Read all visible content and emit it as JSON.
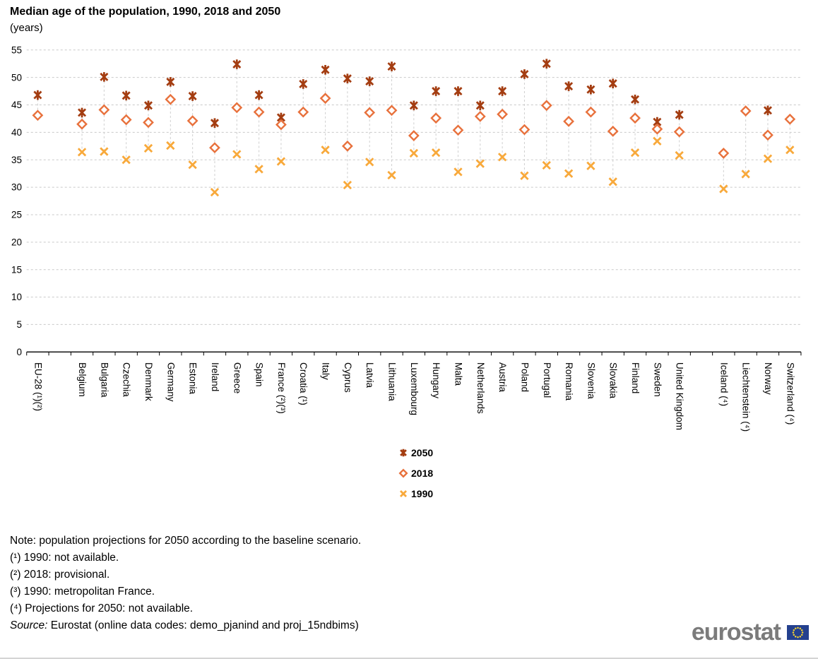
{
  "title": "Median age of the population, 1990, 2018 and 2050",
  "subtitle": "(years)",
  "chart_data": {
    "type": "scatter",
    "title": "Median age of the population, 1990, 2018 and 2050",
    "ylabel": "(years)",
    "ylim": [
      0,
      55
    ],
    "ytick_step": 5,
    "grid": "horizontal-dashed",
    "legend_position": "bottom-center",
    "category_groups": [
      [
        "EU-28 (¹)(²)"
      ],
      [
        "Belgium",
        "Bulgaria",
        "Czechia",
        "Denmark",
        "Germany",
        "Estonia",
        "Ireland",
        "Greece",
        "Spain",
        "France (²)(³)",
        "Croatia (¹)",
        "Italy",
        "Cyprus",
        "Latvia",
        "Lithuania",
        "Luxembourg",
        "Hungary",
        "Malta",
        "Netherlands",
        "Austria",
        "Poland",
        "Portugal",
        "Romania",
        "Slovenia",
        "Slovakia",
        "Finland",
        "Sweden",
        "United Kingdom"
      ],
      [
        "Iceland (⁴)",
        "Liechtenstein (⁴)",
        "Norway",
        "Switzerland (⁴)"
      ]
    ],
    "series": [
      {
        "name": "2050",
        "marker": "star6",
        "color": "#a43d11",
        "values": [
          46.8,
          43.6,
          50.1,
          46.7,
          44.9,
          49.2,
          46.6,
          41.7,
          52.4,
          46.8,
          42.7,
          48.8,
          51.4,
          49.8,
          49.3,
          52.0,
          44.9,
          47.5,
          47.5,
          44.9,
          47.5,
          50.6,
          52.5,
          48.4,
          47.8,
          48.9,
          46.0,
          41.9,
          43.2,
          null,
          null,
          44.0,
          null
        ]
      },
      {
        "name": "2018",
        "marker": "diamond",
        "color": "#e8713c",
        "values": [
          43.1,
          41.5,
          44.1,
          42.3,
          41.8,
          46.0,
          42.1,
          37.2,
          44.5,
          43.7,
          41.4,
          43.7,
          46.2,
          37.5,
          43.6,
          44.0,
          39.4,
          42.6,
          40.4,
          42.9,
          43.3,
          40.5,
          44.9,
          42.0,
          43.7,
          40.2,
          42.6,
          40.6,
          40.1,
          36.2,
          43.9,
          39.5,
          42.4
        ]
      },
      {
        "name": "1990",
        "marker": "x",
        "color": "#f8a93b",
        "values": [
          null,
          36.4,
          36.5,
          35.0,
          37.1,
          37.6,
          34.1,
          29.1,
          36.0,
          33.3,
          34.7,
          null,
          36.8,
          30.4,
          34.6,
          32.2,
          36.2,
          36.3,
          32.8,
          34.3,
          35.5,
          32.1,
          34.0,
          32.5,
          33.9,
          31.0,
          36.3,
          38.4,
          35.8,
          29.7,
          32.4,
          35.2,
          36.8
        ]
      }
    ],
    "gridline_color": "#c9c9c9",
    "drop_line_color": "#cfcfcf",
    "axis_color": "#000000"
  },
  "notes": {
    "line1": "Note: population projections for 2050 according to the baseline scenario.",
    "line2": "(¹) 1990: not available.",
    "line3": "(²) 2018: provisional.",
    "line4": "(³) 1990: metropolitan France.",
    "line5": "(⁴) Projections for 2050: not available.",
    "source_label": "Source:",
    "source_text": " Eurostat (online data codes: demo_pjanind and proj_15ndbims)"
  },
  "logo": {
    "text": "eurostat",
    "flag_blue": "#24408e",
    "star_yellow": "#f5d130"
  }
}
